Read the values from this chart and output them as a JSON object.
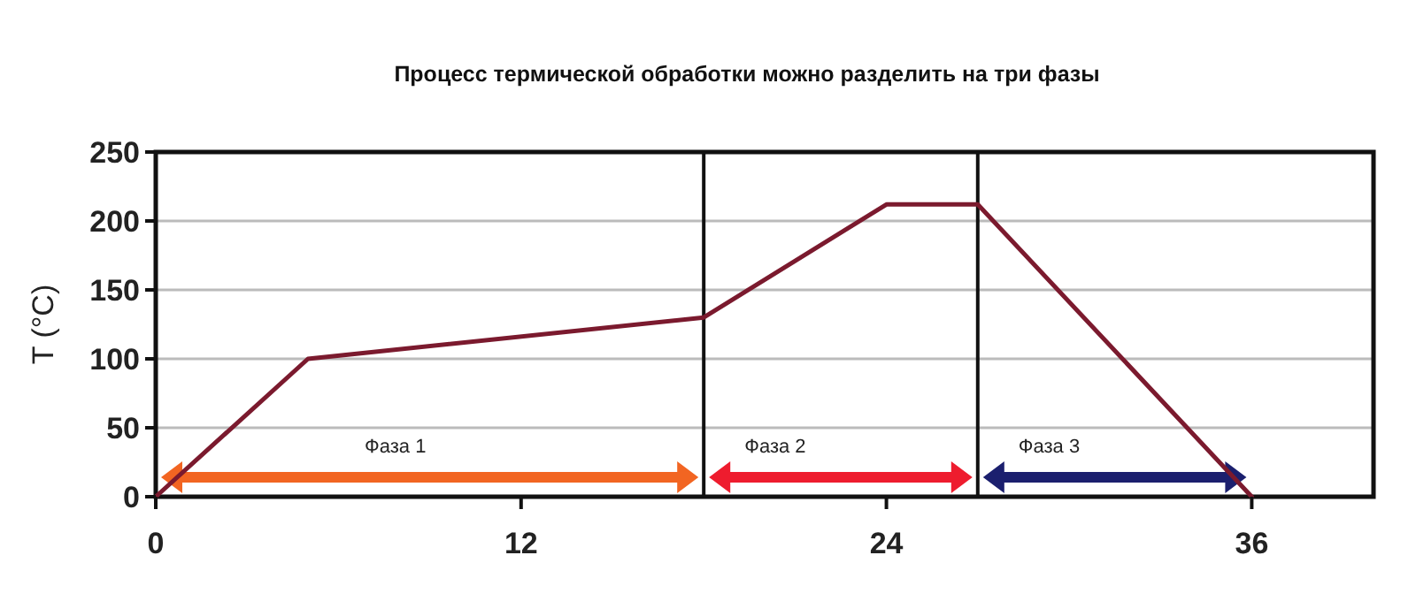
{
  "chart_data": {
    "type": "line",
    "title": "Процесс термической обработки можно разделить на три фазы",
    "ylabel": "T (°C)",
    "x": [
      0,
      5,
      18,
      24,
      27,
      36
    ],
    "series": [
      {
        "color": "#7b1a2e",
        "values": [
          0,
          100,
          130,
          212,
          212,
          0
        ]
      }
    ],
    "xlim": [
      0,
      40
    ],
    "xticks": [
      0,
      12,
      24,
      36
    ],
    "ylim": [
      0,
      250
    ],
    "yticks": [
      0,
      50,
      100,
      150,
      200,
      250
    ],
    "grid": "y",
    "marker": "none",
    "line_style": "solid",
    "ref_lines": [
      {
        "axis": "x",
        "value": 18,
        "color": "#111111"
      },
      {
        "axis": "x",
        "value": 27,
        "color": "#111111"
      }
    ],
    "annotations": [
      "Фаза 1",
      "Фаза 2",
      "Фаза 3"
    ]
  }
}
